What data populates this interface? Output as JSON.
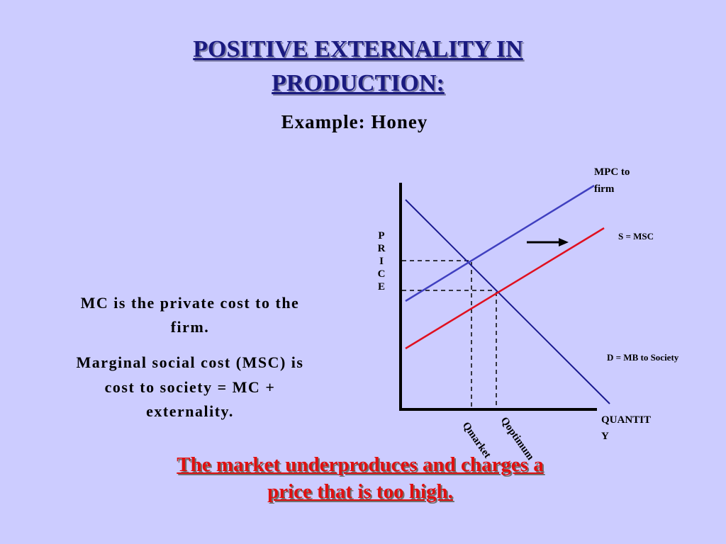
{
  "title": [
    "POSITIVE EXTERNALITY IN",
    "PRODUCTION:"
  ],
  "subtitle": "Example:  Honey",
  "notes": [
    [
      "MC is the private cost to the",
      "firm."
    ],
    [
      "Marginal social cost (MSC) is",
      "cost to society = MC +",
      "externality."
    ]
  ],
  "diagram": {
    "y_axis_label": "PRICE",
    "x_axis_label": [
      "QUANTIT",
      "Y"
    ],
    "mpc_label": [
      "MPC to",
      "firm"
    ],
    "msc_label": "S = MSC",
    "demand_label": "D = MB to Society",
    "q_market": "Qmarket",
    "q_optimum": "Qoptimum"
  },
  "conclusion": [
    "The market underproduces and charges a",
    "price that is too high."
  ]
}
